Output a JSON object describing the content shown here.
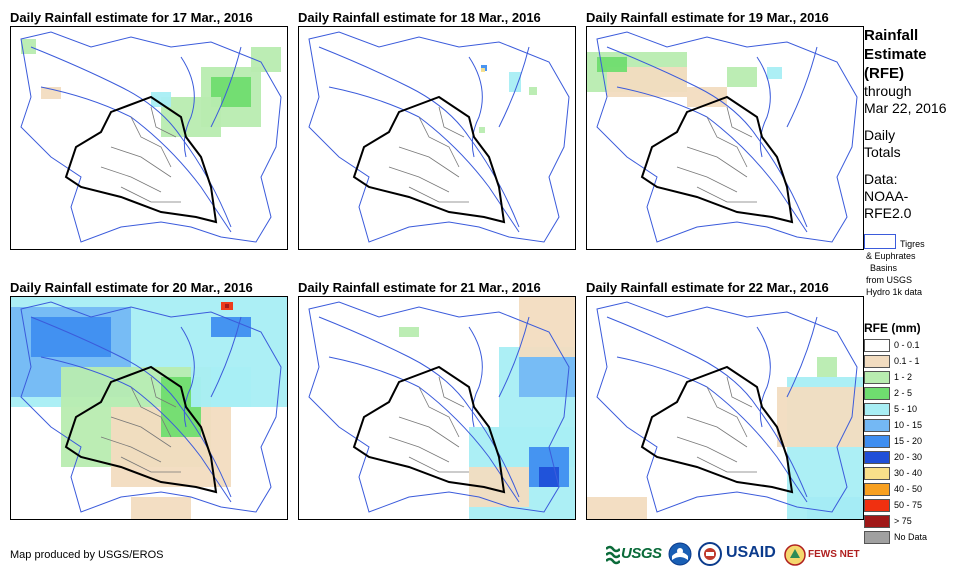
{
  "panels": [
    {
      "title": "Daily Rainfall estimate for 17 Mar., 2016"
    },
    {
      "title": "Daily Rainfall estimate for 18 Mar., 2016"
    },
    {
      "title": "Daily Rainfall estimate for 19 Mar., 2016"
    },
    {
      "title": "Daily Rainfall estimate for 20 Mar., 2016"
    },
    {
      "title": "Daily Rainfall estimate for 21 Mar., 2016"
    },
    {
      "title": "Daily Rainfall estimate for 22 Mar., 2016"
    }
  ],
  "sidebar": {
    "heading1": "Rainfall",
    "heading2": "Estimate",
    "heading3": "(RFE)",
    "through": "through",
    "date": "Mar 22, 2016",
    "daily": "Daily",
    "totals": "Totals",
    "data_label": "Data:",
    "data_src1": "NOAA-",
    "data_src2": "RFE2.0",
    "basin_line1": "Tigres",
    "basin_line2": "& Euphrates",
    "basin_line3": "Basins",
    "basin_line4": "from USGS",
    "basin_line5": "Hydro 1k data",
    "basin_color": "#3b5bdb"
  },
  "legend": {
    "title": "RFE (mm)",
    "items": [
      {
        "label": "0 - 0.1",
        "color": "#ffffff"
      },
      {
        "label": "0.1 - 1",
        "color": "#f2dcc0"
      },
      {
        "label": "1 - 2",
        "color": "#b8ecb0"
      },
      {
        "label": "2 - 5",
        "color": "#6fdd6f"
      },
      {
        "label": "5 - 10",
        "color": "#a8eef4"
      },
      {
        "label": "10 - 15",
        "color": "#74b8f4"
      },
      {
        "label": "15 - 20",
        "color": "#3f8ef0"
      },
      {
        "label": "20 - 30",
        "color": "#1f4fd8"
      },
      {
        "label": "30 - 40",
        "color": "#f8e08a"
      },
      {
        "label": "40 - 50",
        "color": "#f8a020"
      },
      {
        "label": "50 - 75",
        "color": "#f03010"
      },
      {
        "label": "> 75",
        "color": "#a01818"
      },
      {
        "label": "No Data",
        "color": "#a0a0a0"
      }
    ]
  },
  "footer": {
    "credit": "Map produced by USGS/EROS",
    "logo_usgs": "USGS",
    "logo_usaid": "USAID",
    "logo_fews": "FEWS NET"
  }
}
